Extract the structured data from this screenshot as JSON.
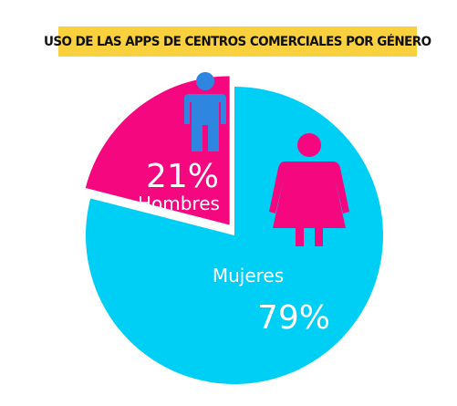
{
  "chart_data": {
    "type": "pie",
    "title": "USO DE LAS APPS DE CENTROS COMERCIALES POR GÉNERO",
    "slices": [
      {
        "label": "Mujeres",
        "value": 79,
        "value_label": "79%",
        "color": "#00cff5",
        "icon": "woman-icon"
      },
      {
        "label": "Hombres",
        "value": 21,
        "value_label": "21%",
        "color": "#f5077f",
        "icon": "man-icon",
        "exploded": true
      }
    ],
    "legend": "none",
    "title_background": "#f9d03d",
    "man_icon_color": "#2e86e0",
    "woman_icon_color": "#f5077f"
  }
}
